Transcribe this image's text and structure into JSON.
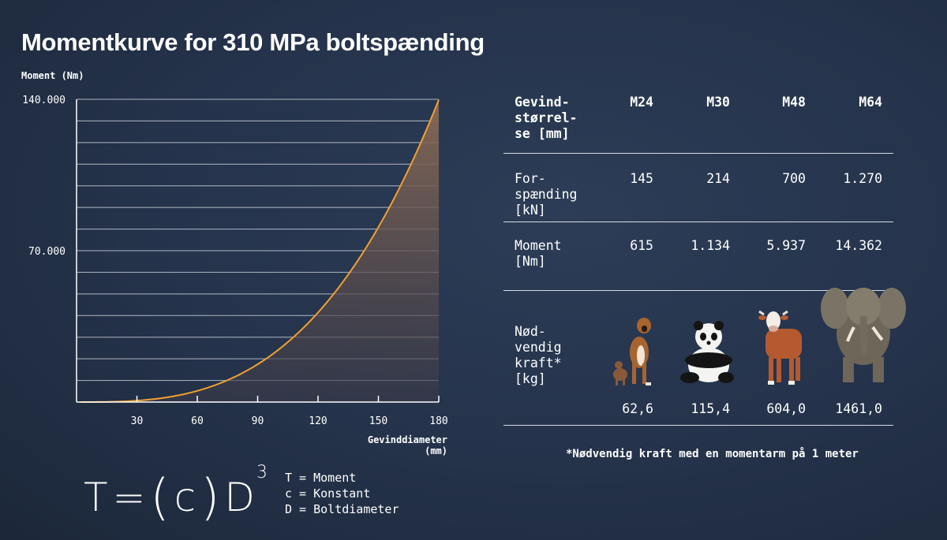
{
  "title": "Momentkurve for 310 MPa boltspænding",
  "chart_data": {
    "type": "area",
    "ylabel": "Moment (Nm)",
    "xlabel_line1": "Gevinddiameter",
    "xlabel_line2": "(mm)",
    "y_tick_labels": [
      "140.000",
      "70.000"
    ],
    "y_ticks": [
      140000,
      70000
    ],
    "x_tick_labels": [
      "30",
      "60",
      "90",
      "120",
      "150",
      "180"
    ],
    "x_ticks": [
      30,
      60,
      90,
      120,
      150,
      180
    ],
    "xlim": [
      0,
      180
    ],
    "ylim": [
      0,
      140000
    ],
    "grid": true,
    "series": [
      {
        "x": [
          0,
          15,
          30,
          45,
          60,
          75,
          90,
          105,
          120,
          135,
          150,
          165,
          180
        ],
        "y": [
          0,
          81,
          647,
          2184,
          5176,
          10109,
          17469,
          27740,
          41407,
          58957,
          80874,
          107643,
          139752
        ]
      }
    ],
    "colors": {
      "curve": "#f0a030",
      "fill_top": "#7a5c4a",
      "grid": "#c9ced8",
      "axis": "#ffffff"
    }
  },
  "table": {
    "header": {
      "label": "Gevind-\nstørrel-\nse [mm]",
      "cols": [
        "M24",
        "M30",
        "M48",
        "M64"
      ]
    },
    "rows": [
      {
        "label": "For-\nspænding\n[kN]",
        "values": [
          "145",
          "214",
          "700",
          "1.270"
        ]
      },
      {
        "label": "Moment\n[Nm]",
        "values": [
          "615",
          "1.134",
          "5.937",
          "14.362"
        ]
      },
      {
        "label": "Nød-\nvendig\nkraft*\n[kg]",
        "values": [
          "62,6",
          "115,4",
          "604,0",
          "1461,0"
        ]
      }
    ],
    "animals": [
      "dog-icon",
      "panda-icon",
      "cow-icon",
      "elephant-icon"
    ]
  },
  "footnote": "*Nødvendig kraft med en momentarm på 1 meter",
  "formula": {
    "T": "T",
    "eq": "=",
    "lp": "(",
    "c": "c",
    "rp": ")",
    "D": "D",
    "exp": "3"
  },
  "legend": [
    "T = Moment",
    "c = Konstant",
    "D = Boltdiameter"
  ]
}
